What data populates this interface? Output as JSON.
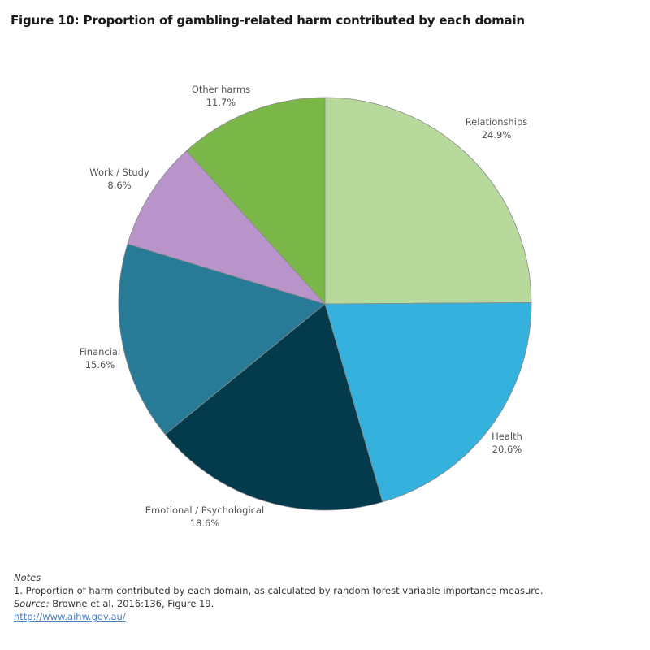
{
  "title": "Figure 10: Proportion of gambling-related harm contributed by each domain",
  "chart_data": {
    "type": "pie",
    "title": "Figure 10: Proportion of gambling-related harm contributed by each domain",
    "start_angle_deg": 0,
    "direction": "clockwise",
    "categories": [
      "Relationships",
      "Health",
      "Emotional / Psychological",
      "Financial",
      "Work / Study",
      "Other harms"
    ],
    "values": [
      24.9,
      20.6,
      18.6,
      15.6,
      8.6,
      11.7
    ],
    "labels": [
      "24.9%",
      "20.6%",
      "18.6%",
      "15.6%",
      "8.6%",
      "11.7%"
    ],
    "colors": [
      "#b8d99c",
      "#34b1dc",
      "#033a4c",
      "#287b96",
      "#b894cb",
      "#7ab648"
    ],
    "unit": "%",
    "legend": "none (direct labels)"
  },
  "slices": [
    {
      "name": "Relationships",
      "pct": "24.9%"
    },
    {
      "name": "Health",
      "pct": "20.6%"
    },
    {
      "name": "Emotional / Psychological",
      "pct": "18.6%"
    },
    {
      "name": "Financial",
      "pct": "15.6%"
    },
    {
      "name": "Work / Study",
      "pct": "8.6%"
    },
    {
      "name": "Other harms",
      "pct": "11.7%"
    }
  ],
  "notes": {
    "heading": "Notes",
    "line1": "1. Proportion of harm contributed by each domain, as calculated by random forest variable importance measure.",
    "source_label": "Source:",
    "source_text": " Browne et al. 2016:136, Figure 19.",
    "link": "http://www.aihw.gov.au/"
  }
}
